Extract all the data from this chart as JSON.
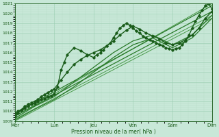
{
  "title": "",
  "xlabel": "Pression niveau de la mer( hPa )",
  "ylabel": "",
  "ylim": [
    1009,
    1021
  ],
  "yticks": [
    1009,
    1010,
    1011,
    1012,
    1013,
    1014,
    1015,
    1016,
    1017,
    1018,
    1019,
    1020,
    1021
  ],
  "day_labels": [
    "Mer",
    "Lun",
    "Jeu",
    "Ven",
    "Sam",
    "Dim"
  ],
  "day_positions": [
    0,
    1,
    2,
    3,
    4,
    5
  ],
  "background_color": "#c8e8d8",
  "plot_bg_color": "#c8e8d8",
  "grid_color_major": "#99ccb0",
  "grid_color_minor": "#b0d8c0",
  "line_color_dark": "#1a5c1a",
  "line_color_mid": "#2e7d2e",
  "line_color_light": "#4a9a4a",
  "figsize": [
    3.2,
    2.0
  ],
  "dpi": 100,
  "lines": [
    {
      "x": [
        0.0,
        0.08,
        0.16,
        0.25,
        0.33,
        0.42,
        0.5,
        0.58,
        0.67,
        0.75,
        0.83,
        0.92,
        1.0,
        1.08,
        1.17,
        1.25,
        1.33,
        1.5,
        1.67,
        1.83,
        2.0,
        2.08,
        2.17,
        2.25,
        2.33,
        2.42,
        2.5,
        2.58,
        2.67,
        2.75,
        2.83,
        2.92,
        3.0,
        3.08,
        3.17,
        3.25,
        3.33,
        3.42,
        3.5,
        3.58,
        3.67,
        3.75,
        3.83,
        3.92,
        4.0,
        4.08,
        4.17,
        4.25,
        4.33,
        4.42,
        4.5,
        4.58,
        4.67,
        4.75,
        4.83,
        4.92,
        5.0
      ],
      "y": [
        1009.5,
        1009.8,
        1010.1,
        1010.3,
        1010.5,
        1010.7,
        1010.8,
        1011.0,
        1011.2,
        1011.3,
        1011.5,
        1011.6,
        1011.8,
        1012.5,
        1014.2,
        1015.0,
        1015.8,
        1016.5,
        1016.2,
        1015.8,
        1015.5,
        1015.8,
        1016.0,
        1016.3,
        1016.7,
        1017.0,
        1017.5,
        1018.0,
        1018.5,
        1018.8,
        1019.0,
        1018.8,
        1018.5,
        1018.2,
        1018.0,
        1017.7,
        1017.5,
        1017.3,
        1017.2,
        1017.0,
        1016.8,
        1016.7,
        1016.5,
        1016.4,
        1016.3,
        1016.4,
        1016.5,
        1016.8,
        1017.2,
        1017.8,
        1018.5,
        1019.2,
        1019.8,
        1020.3,
        1020.8,
        1021.0,
        1020.5
      ],
      "marker": "D",
      "markersize": 1.8,
      "linewidth": 1.0,
      "color": "#1a5c1a",
      "zorder": 6
    },
    {
      "x": [
        0.0,
        0.08,
        0.17,
        0.25,
        0.33,
        0.42,
        0.5,
        0.58,
        0.67,
        0.75,
        0.83,
        0.92,
        1.0,
        1.17,
        1.33,
        1.5,
        1.67,
        1.83,
        2.0,
        2.17,
        2.33,
        2.5,
        2.67,
        2.83,
        3.0,
        3.17,
        3.33,
        3.5,
        3.67,
        3.83,
        4.0,
        4.17,
        4.33,
        4.5,
        4.67,
        4.83,
        5.0
      ],
      "y": [
        1009.8,
        1010.0,
        1010.2,
        1010.5,
        1010.7,
        1010.9,
        1011.0,
        1011.2,
        1011.5,
        1011.7,
        1011.9,
        1012.1,
        1012.3,
        1013.2,
        1014.0,
        1014.8,
        1015.3,
        1015.7,
        1016.0,
        1016.3,
        1016.7,
        1017.2,
        1017.8,
        1018.3,
        1018.7,
        1018.4,
        1018.0,
        1017.7,
        1017.4,
        1017.0,
        1016.8,
        1017.0,
        1017.3,
        1017.8,
        1018.5,
        1019.5,
        1020.2
      ],
      "marker": "D",
      "markersize": 1.8,
      "linewidth": 1.0,
      "color": "#1a5c1a",
      "zorder": 5
    },
    {
      "x": [
        0.0,
        0.5,
        1.0,
        1.5,
        2.0,
        2.5,
        3.0,
        3.5,
        4.0,
        4.5,
        5.0
      ],
      "y": [
        1009.3,
        1010.5,
        1011.5,
        1013.0,
        1014.5,
        1016.0,
        1017.2,
        1017.8,
        1016.8,
        1017.8,
        1019.8
      ],
      "marker": null,
      "markersize": 0,
      "linewidth": 0.9,
      "color": "#2a7a2a",
      "zorder": 4
    },
    {
      "x": [
        0.0,
        0.5,
        1.0,
        1.5,
        2.0,
        2.5,
        3.0,
        3.5,
        4.0,
        4.5,
        5.0
      ],
      "y": [
        1009.1,
        1010.2,
        1011.2,
        1012.5,
        1014.0,
        1015.5,
        1016.8,
        1017.5,
        1016.5,
        1017.5,
        1019.5
      ],
      "marker": null,
      "markersize": 0,
      "linewidth": 0.9,
      "color": "#2a7a2a",
      "zorder": 4
    },
    {
      "x": [
        0.0,
        5.0
      ],
      "y": [
        1009.8,
        1020.8
      ],
      "marker": null,
      "markersize": 0,
      "linewidth": 0.9,
      "color": "#2a7a2a",
      "zorder": 3
    },
    {
      "x": [
        0.0,
        5.0
      ],
      "y": [
        1009.5,
        1020.2
      ],
      "marker": null,
      "markersize": 0,
      "linewidth": 0.9,
      "color": "#2a7a2a",
      "zorder": 3
    },
    {
      "x": [
        0.0,
        5.0
      ],
      "y": [
        1009.2,
        1019.8
      ],
      "marker": null,
      "markersize": 0,
      "linewidth": 0.7,
      "color": "#4a9a4a",
      "zorder": 2
    },
    {
      "x": [
        0.0,
        5.0
      ],
      "y": [
        1009.0,
        1019.5
      ],
      "marker": null,
      "markersize": 0,
      "linewidth": 0.7,
      "color": "#4a9a4a",
      "zorder": 2
    },
    {
      "x": [
        0.0,
        5.0
      ],
      "y": [
        1009.5,
        1021.0
      ],
      "marker": null,
      "markersize": 0,
      "linewidth": 0.7,
      "color": "#4a9a4a",
      "zorder": 2
    }
  ]
}
